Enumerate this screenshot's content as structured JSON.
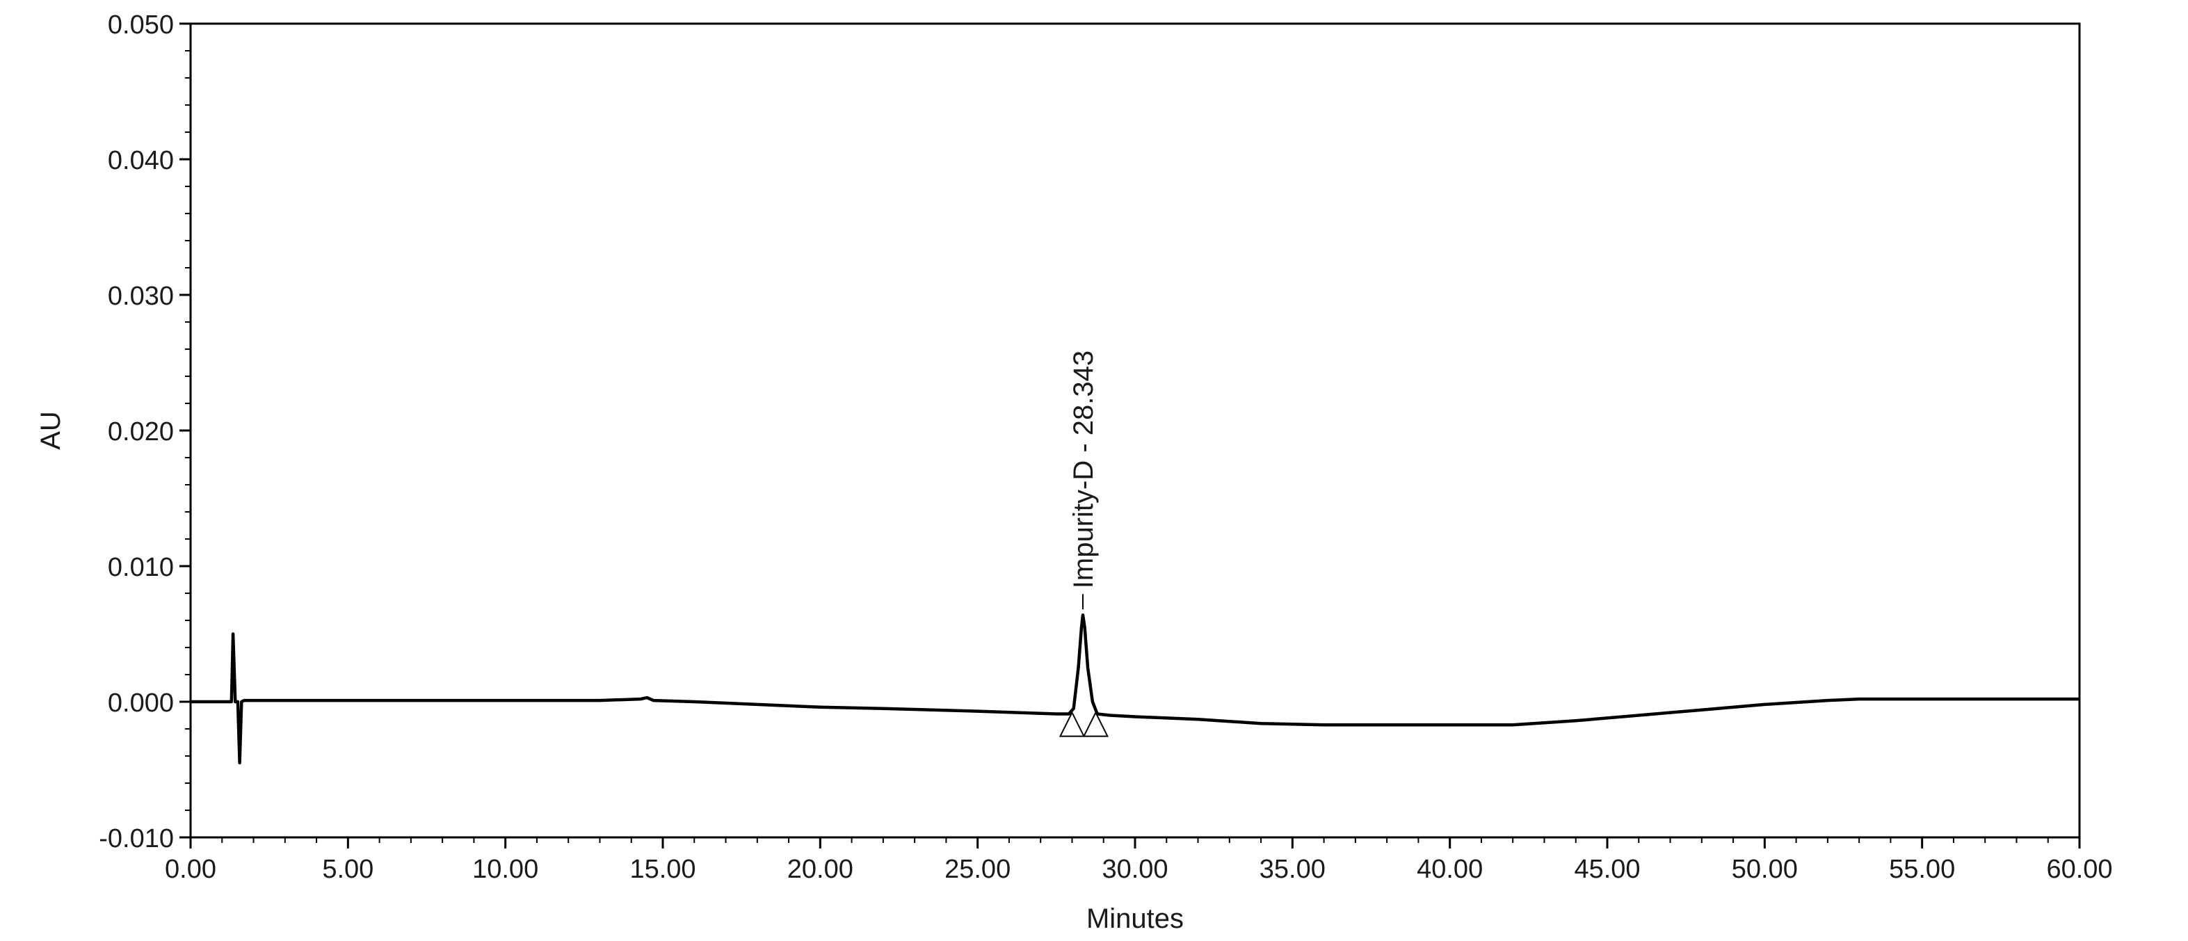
{
  "chart_data": {
    "type": "line",
    "title": "",
    "xlabel": "Minutes",
    "ylabel": "AU",
    "xlim": [
      0,
      60
    ],
    "ylim": [
      -0.01,
      0.05
    ],
    "x_ticks": [
      "0.00",
      "5.00",
      "10.00",
      "15.00",
      "20.00",
      "25.00",
      "30.00",
      "35.00",
      "40.00",
      "45.00",
      "50.00",
      "55.00",
      "60.00"
    ],
    "x_tick_values": [
      0,
      5,
      10,
      15,
      20,
      25,
      30,
      35,
      40,
      45,
      50,
      55,
      60
    ],
    "y_ticks": [
      "-0.010",
      "0.000",
      "0.010",
      "0.020",
      "0.030",
      "0.040",
      "0.050"
    ],
    "y_tick_values": [
      -0.01,
      0,
      0.01,
      0.02,
      0.03,
      0.04,
      0.05
    ],
    "grid": false,
    "legend": "none",
    "line_color": "#000000",
    "series": [
      {
        "x": [
          0.0,
          1.2,
          1.3,
          1.35,
          1.42,
          1.5,
          1.56,
          1.62,
          1.7,
          1.8,
          2.0,
          5.0,
          10.0,
          13.0,
          14.3,
          14.5,
          14.7,
          16.0,
          18.0,
          20.0,
          22.0,
          25.0,
          27.5,
          27.9,
          28.05,
          28.2,
          28.3,
          28.343,
          28.4,
          28.5,
          28.65,
          28.8,
          29.2,
          30.0,
          32.0,
          34.0,
          36.0,
          38.0,
          40.0,
          42.0,
          44.0,
          46.0,
          48.0,
          50.0,
          52.0,
          53.0,
          55.0,
          58.0,
          60.0
        ],
        "y": [
          0.0,
          0.0,
          0.0,
          0.005,
          0.0,
          0.0,
          -0.0045,
          0.0,
          0.0001,
          0.0001,
          0.0001,
          0.0001,
          0.0001,
          0.0001,
          0.0002,
          0.0003,
          0.0001,
          0.0,
          -0.0002,
          -0.0004,
          -0.0005,
          -0.0007,
          -0.0009,
          -0.0009,
          -0.0005,
          0.0025,
          0.0055,
          0.0064,
          0.0055,
          0.0025,
          0.0,
          -0.0009,
          -0.001,
          -0.0011,
          -0.0013,
          -0.0016,
          -0.0017,
          -0.0017,
          -0.0017,
          -0.0017,
          -0.0014,
          -0.001,
          -0.0006,
          -0.0002,
          0.0001,
          0.0002,
          0.0002,
          0.0002,
          0.0002
        ]
      }
    ],
    "peaks": [
      {
        "label": "Impurity-D - 28.343",
        "retention_time": 28.343,
        "height": 0.0064,
        "start": 28.0,
        "end": 28.75
      }
    ]
  }
}
